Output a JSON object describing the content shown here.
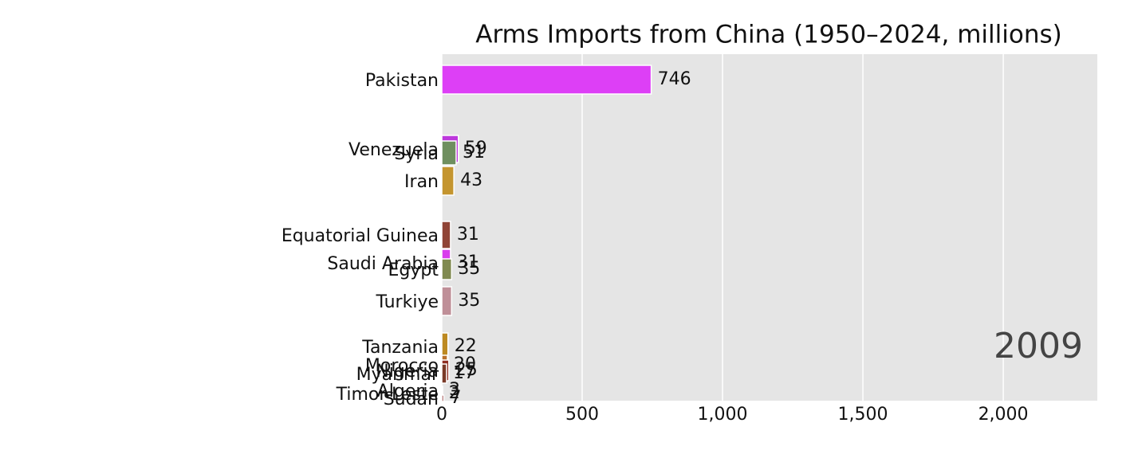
{
  "chart_data": {
    "type": "bar",
    "orientation": "horizontal",
    "title": "Arms Imports from China (1950–2024, millions)",
    "annotation": "2009",
    "categories": [
      "Pakistan",
      "Venezuela",
      "Syria",
      "Iran",
      "Equatorial Guinea",
      "Saudi Arabia",
      "Egypt",
      "Turkiye",
      "Tanzania",
      "Morocco",
      "Nigeria",
      "Myanmar",
      "Algeria",
      "Timor-Leste",
      "Sudan"
    ],
    "values": [
      746,
      59,
      51,
      43,
      31,
      31,
      35,
      35,
      22,
      20,
      25,
      17,
      3,
      2,
      7
    ],
    "colors": [
      "#dd3ff6",
      "#bd38dc",
      "#6f8f5f",
      "#c4952f",
      "#904436",
      "#d93ced",
      "#808a50",
      "#bf8f98",
      "#bd8a22",
      "#b8702a",
      "#8f2f24",
      "#7a3a28",
      "#c9a060",
      "#9a9a9a",
      "#a05050"
    ],
    "xlim": [
      0,
      2335
    ],
    "xticks": [
      0,
      500,
      {
        "value": 1000,
        "label": "1,000"
      },
      {
        "value": 1500,
        "label": "1,500"
      },
      {
        "value": 2000,
        "label": "2,000"
      }
    ],
    "grid": true
  }
}
